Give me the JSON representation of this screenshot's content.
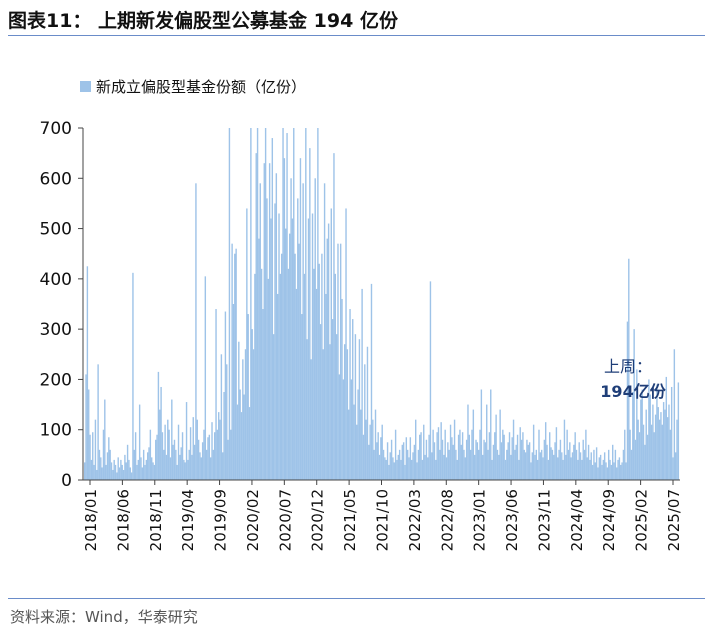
{
  "title": "图表11：  上期新发偏股型公募基金 194 亿份",
  "source": {
    "prefix": "资料来源：",
    "names": "Wind，华泰研究"
  },
  "chart_data": {
    "type": "bar",
    "legend": "新成立偏股型基金份额（亿份）",
    "legend_placement": "top-left",
    "bar_color": "#9ec3e8",
    "annotation": [
      "上周：",
      "194亿份"
    ],
    "annotation_color": "#1f3e78",
    "ylim": [
      0,
      700
    ],
    "yticks": [
      0,
      100,
      200,
      300,
      400,
      500,
      600,
      700
    ],
    "grid": false,
    "x_range": [
      "2018-01",
      "2025-07"
    ],
    "x_tick_labels": [
      "2018/01",
      "2018/06",
      "2018/11",
      "2019/04",
      "2019/09",
      "2020/02",
      "2020/07",
      "2020/12",
      "2021/05",
      "2021/10",
      "2022/03",
      "2022/08",
      "2023/01",
      "2023/06",
      "2023/11",
      "2024/04",
      "2024/09",
      "2025/02",
      "2025/07"
    ],
    "series": [
      {
        "values": [
          35,
          210,
          425,
          180,
          90,
          40,
          95,
          30,
          120,
          20,
          230,
          60,
          45,
          25,
          100,
          160,
          30,
          55,
          85,
          60,
          35,
          20,
          40,
          30,
          15,
          45,
          25,
          40,
          30,
          20,
          50,
          35,
          70,
          40,
          25,
          15,
          412,
          60,
          95,
          30,
          40,
          150,
          45,
          25,
          60,
          30,
          40,
          55,
          65,
          100,
          45,
          35,
          30,
          80,
          90,
          215,
          140,
          185,
          95,
          60,
          110,
          50,
          120,
          100,
          45,
          160,
          70,
          80,
          60,
          30,
          110,
          50,
          65,
          95,
          40,
          35,
          155,
          40,
          60,
          105,
          50,
          125,
          70,
          590,
          120,
          80,
          55,
          45,
          75,
          100,
          405,
          60,
          85,
          90,
          45,
          115,
          60,
          95,
          340,
          100,
          135,
          120,
          250,
          55,
          175,
          335,
          230,
          80,
          700,
          100,
          470,
          350,
          450,
          460,
          150,
          275,
          180,
          135,
          240,
          170,
          260,
          540,
          330,
          145,
          700,
          300,
          260,
          410,
          650,
          700,
          480,
          590,
          420,
          340,
          630,
          700,
          560,
          400,
          630,
          520,
          680,
          290,
          550,
          610,
          370,
          530,
          410,
          450,
          700,
          640,
          500,
          690,
          420,
          490,
          600,
          520,
          700,
          450,
          380,
          560,
          470,
          640,
          330,
          590,
          410,
          700,
          280,
          520,
          660,
          240,
          530,
          420,
          600,
          380,
          700,
          430,
          310,
          450,
          260,
          590,
          370,
          480,
          510,
          270,
          540,
          320,
          650,
          410,
          290,
          470,
          210,
          470,
          360,
          200,
          270,
          540,
          260,
          140,
          340,
          200,
          320,
          150,
          290,
          110,
          180,
          280,
          140,
          380,
          90,
          230,
          120,
          265,
          70,
          110,
          390,
          120,
          60,
          140,
          75,
          95,
          50,
          85,
          110,
          60,
          45,
          40,
          75,
          30,
          55,
          80,
          45,
          35,
          100,
          40,
          50,
          60,
          40,
          70,
          75,
          30,
          85,
          60,
          45,
          85,
          40,
          55,
          70,
          120,
          35,
          60,
          90,
          95,
          40,
          110,
          50,
          80,
          45,
          90,
          395,
          55,
          100,
          75,
          40,
          95,
          105,
          60,
          115,
          80,
          50,
          100,
          45,
          75,
          60,
          110,
          85,
          70,
          120,
          60,
          40,
          90,
          100,
          70,
          95,
          60,
          45,
          80,
          150,
          90,
          60,
          100,
          140,
          50,
          80,
          75,
          60,
          100,
          180,
          50,
          80,
          75,
          150,
          60,
          95,
          180,
          40,
          70,
          95,
          130,
          60,
          50,
          140,
          75,
          100,
          90,
          40,
          60,
          75,
          95,
          50,
          85,
          120,
          60,
          70,
          90,
          40,
          105,
          80,
          95,
          60,
          55,
          80,
          70,
          75,
          35,
          55,
          110,
          50,
          60,
          40,
          100,
          55,
          60,
          45,
          80,
          115,
          70,
          40,
          95,
          65,
          60,
          50,
          75,
          105,
          45,
          60,
          80,
          55,
          40,
          120,
          50,
          100,
          60,
          75,
          45,
          55,
          70,
          95,
          60,
          40,
          75,
          55,
          40,
          80,
          60,
          100,
          45,
          70,
          40,
          55,
          30,
          60,
          35,
          65,
          25,
          45,
          50,
          30,
          40,
          55,
          35,
          25,
          60,
          40,
          30,
          70,
          35,
          60,
          25,
          40,
          45,
          30,
          35,
          60,
          100,
          35,
          315,
          440,
          100,
          60,
          175,
          300,
          80,
          220,
          120,
          95,
          160,
          180,
          110,
          70,
          140,
          90,
          200,
          170,
          110,
          150,
          95,
          130,
          190,
          145,
          120,
          135,
          110,
          155,
          140,
          205,
          125,
          150,
          100,
          185,
          45,
          260,
          55,
          120,
          194
        ]
      }
    ]
  }
}
